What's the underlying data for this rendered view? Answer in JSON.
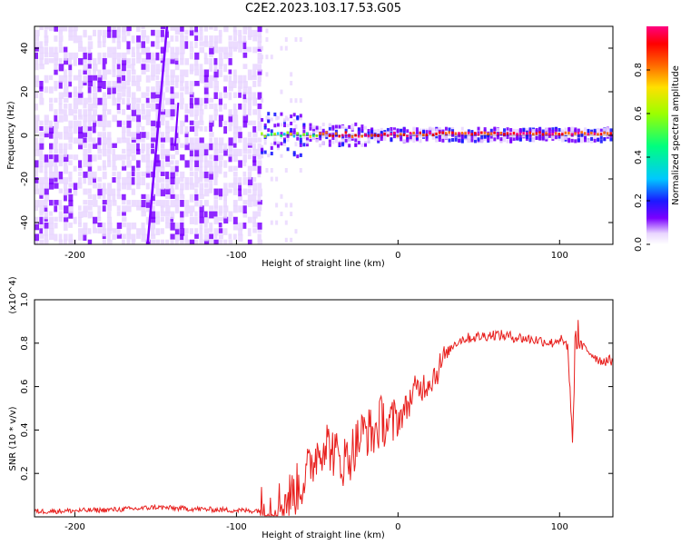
{
  "title": "C2E2.2023.103.17.53.G05",
  "chart_data": [
    {
      "type": "heatmap",
      "xlabel": "Height of straight line (km)",
      "ylabel": "Frequency (Hz)",
      "xlim": [
        -225,
        133
      ],
      "ylim": [
        -50,
        50
      ],
      "xticks": [
        -200,
        -100,
        0,
        100
      ],
      "yticks": [
        -40,
        -20,
        0,
        20,
        40
      ],
      "colorbar": {
        "label": "Normalized spectral amplitude",
        "range": [
          0.0,
          1.0
        ],
        "ticks": [
          0.0,
          0.2,
          0.4,
          0.6,
          0.8
        ],
        "colors": [
          "#ffffff",
          "#e9d6ff",
          "#7b00ff",
          "#1a1aff",
          "#00c8ff",
          "#00ff7f",
          "#9cff00",
          "#ffe000",
          "#ff6a00",
          "#ff0000",
          "#ff0080"
        ]
      },
      "features": [
        {
          "label": "noise region",
          "x_range": [
            -225,
            -85
          ],
          "y_range": [
            -50,
            50
          ],
          "level": 0.2
        },
        {
          "label": "streak",
          "x": [
            -155,
            -143
          ],
          "y": [
            -50,
            50
          ],
          "level": 0.2
        },
        {
          "label": "signal band",
          "x_range": [
            -85,
            133
          ],
          "y_center": 0,
          "level": 0.9
        }
      ]
    },
    {
      "type": "line",
      "xlabel": "Height of straight line (km)",
      "ylabel": "SNR (10 * v/v)",
      "yscale_label": "(x10^4)",
      "xlim": [
        -225,
        133
      ],
      "ylim": [
        0,
        1.0
      ],
      "xticks": [
        -200,
        -100,
        0,
        100
      ],
      "yticks": [
        0.2,
        0.4,
        0.6,
        0.8,
        1.0
      ],
      "series": [
        {
          "color": "#e8201e",
          "x": [
            -225,
            -200,
            -180,
            -160,
            -150,
            -140,
            -120,
            -100,
            -90,
            -80,
            -70,
            -60,
            -55,
            -50,
            -45,
            -40,
            -35,
            -30,
            -25,
            -20,
            -15,
            -10,
            -5,
            0,
            5,
            10,
            15,
            20,
            25,
            30,
            35,
            40,
            50,
            60,
            70,
            80,
            90,
            95,
            100,
            105,
            108,
            110,
            115,
            120,
            125,
            133
          ],
          "values": [
            0.025,
            0.028,
            0.032,
            0.038,
            0.045,
            0.04,
            0.035,
            0.03,
            0.028,
            0.035,
            0.07,
            0.15,
            0.22,
            0.3,
            0.35,
            0.3,
            0.25,
            0.28,
            0.35,
            0.4,
            0.38,
            0.45,
            0.42,
            0.45,
            0.5,
            0.58,
            0.6,
            0.63,
            0.68,
            0.75,
            0.8,
            0.82,
            0.83,
            0.84,
            0.83,
            0.82,
            0.81,
            0.8,
            0.82,
            0.79,
            0.36,
            0.8,
            0.78,
            0.75,
            0.72,
            0.72
          ]
        }
      ]
    }
  ]
}
